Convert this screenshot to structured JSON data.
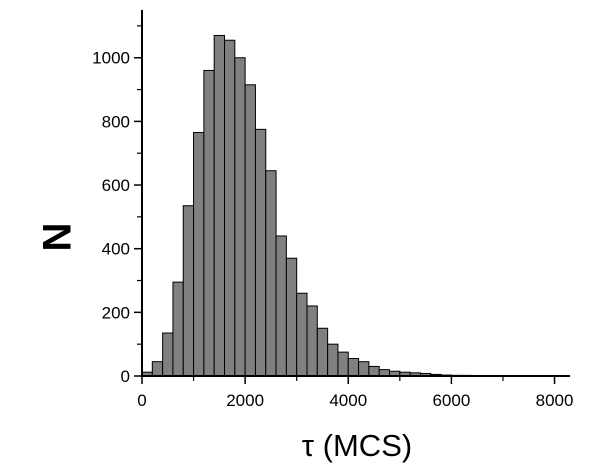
{
  "chart_data": {
    "type": "bar",
    "xlabel": "τ (MCS)",
    "ylabel": "N",
    "xlim": [
      0,
      8300
    ],
    "ylim": [
      0,
      1150
    ],
    "x_ticks": [
      0,
      2000,
      4000,
      6000,
      8000
    ],
    "y_ticks": [
      0,
      200,
      400,
      600,
      800,
      1000
    ],
    "x_tick_labels": [
      "0",
      "2000",
      "4000",
      "6000",
      "8000"
    ],
    "y_tick_labels": [
      "0",
      "200",
      "400",
      "600",
      "800",
      "1000"
    ],
    "bin_width": 200,
    "bin_start": 0,
    "values": [
      12,
      45,
      135,
      295,
      535,
      765,
      960,
      1070,
      1055,
      1000,
      915,
      775,
      645,
      440,
      370,
      260,
      220,
      150,
      100,
      75,
      55,
      45,
      30,
      20,
      15,
      12,
      10,
      8,
      5,
      3,
      2,
      2,
      1,
      1,
      1,
      1,
      1,
      1,
      0,
      0,
      0
    ],
    "bar_color": "#808080",
    "grid": false,
    "legend": "none"
  }
}
